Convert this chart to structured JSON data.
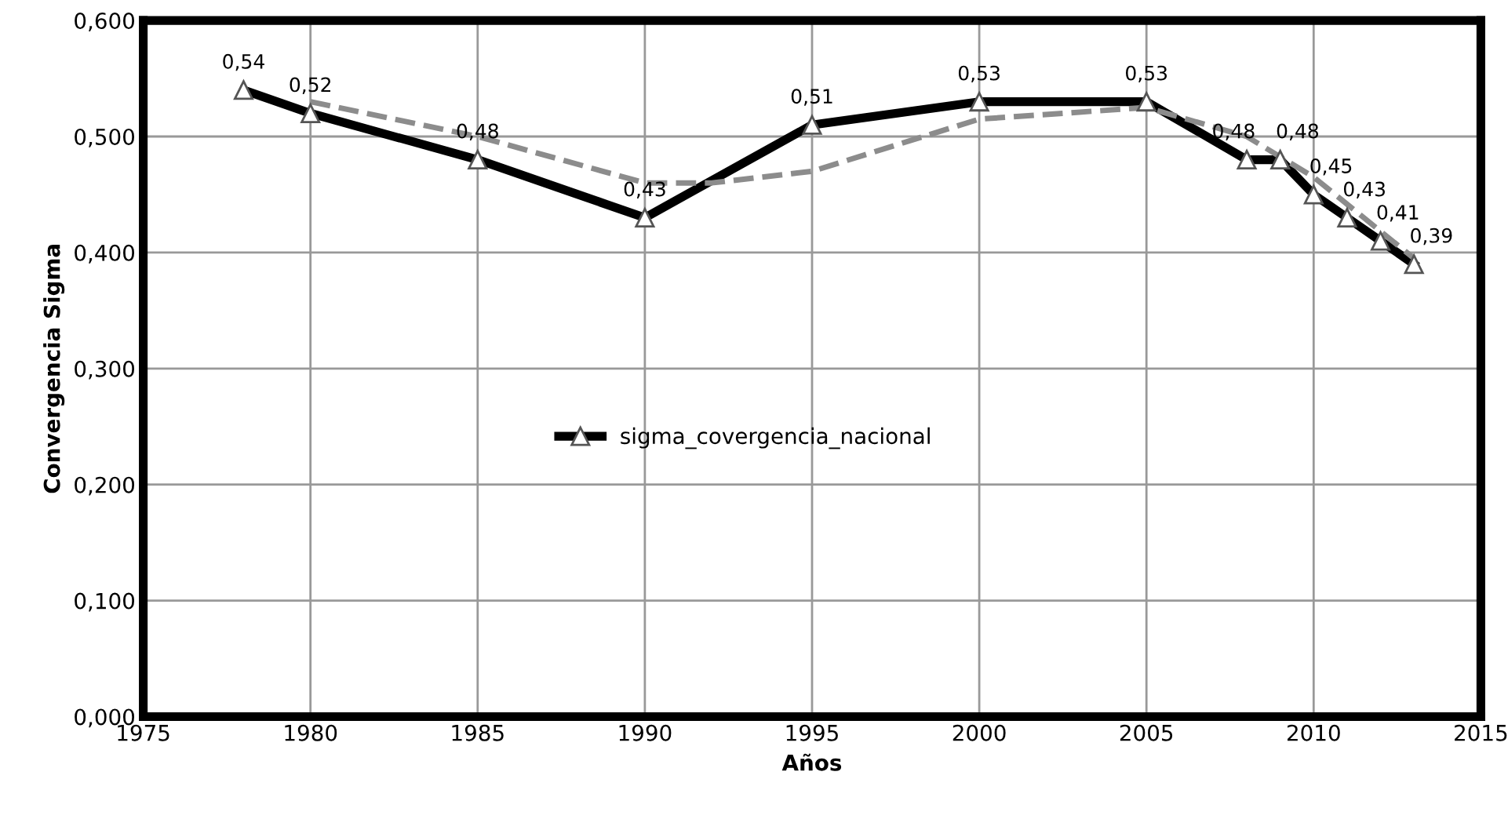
{
  "chart_data": {
    "type": "line",
    "xlabel": "Años",
    "ylabel": "Convergencia Sigma",
    "xlim": [
      1975,
      2015
    ],
    "xticks": [
      1975,
      1980,
      1985,
      1990,
      1995,
      2000,
      2005,
      2010,
      2015
    ],
    "ylim": [
      0,
      0.6
    ],
    "yticks": [
      {
        "value": 0,
        "label": "0,000"
      },
      {
        "value": 0.1,
        "label": "0,100"
      },
      {
        "value": 0.2,
        "label": "0,200"
      },
      {
        "value": 0.3,
        "label": "0,300"
      },
      {
        "value": 0.4,
        "label": "0,400"
      },
      {
        "value": 0.5,
        "label": "0,500"
      },
      {
        "value": 0.6,
        "label": "0,600"
      }
    ],
    "grid": true,
    "legend": "center",
    "series": [
      {
        "name": "sigma_covergencia_nacional",
        "color": "#000000",
        "marker": "triangle",
        "line_style": "solid",
        "x": [
          1978,
          1980,
          1985,
          1990,
          1995,
          2000,
          2005,
          2008,
          2009,
          2010,
          2011,
          2012,
          2013
        ],
        "values": [
          0.54,
          0.52,
          0.48,
          0.43,
          0.51,
          0.53,
          0.53,
          0.48,
          0.48,
          0.45,
          0.43,
          0.41,
          0.39
        ],
        "value_labels": [
          "0,54",
          "0,52",
          "0,48",
          "0,43",
          "0,51",
          "0,53",
          "0,53",
          "0,48",
          "0,48",
          "0,45",
          "0,43",
          "0,41",
          "0,39"
        ]
      },
      {
        "color": "#8c8c8c",
        "marker": "none",
        "line_style": "dashed",
        "x": [
          1980,
          1985,
          1990,
          1992,
          1995,
          2000,
          2005,
          2008,
          2010,
          2013
        ],
        "values": [
          0.53,
          0.5,
          0.46,
          0.46,
          0.47,
          0.515,
          0.525,
          0.5,
          0.465,
          0.395
        ]
      }
    ]
  }
}
